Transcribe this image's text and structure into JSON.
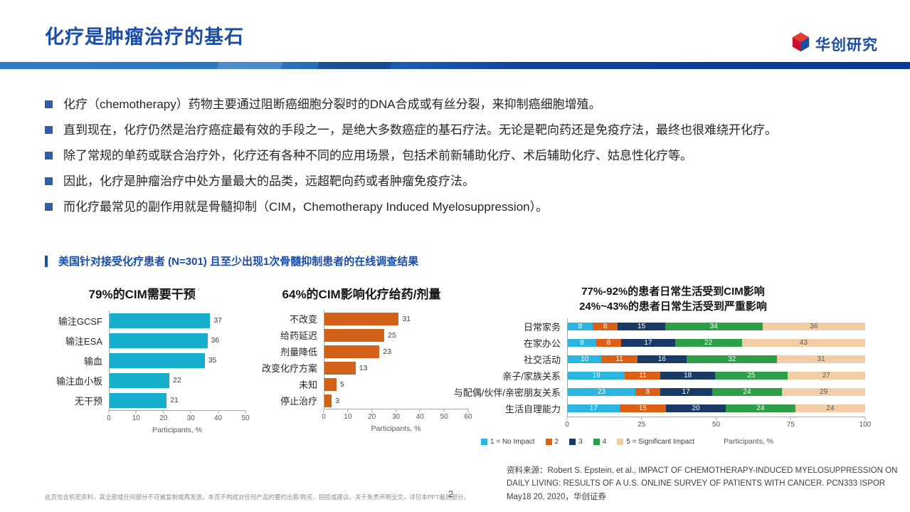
{
  "header": {
    "title": "化疗是肿瘤治疗的基石",
    "logo_text": "华创研究"
  },
  "bullets": [
    "化疗（chemotherapy）药物主要通过阻断癌细胞分裂时的DNA合成或有丝分裂，来抑制癌细胞增殖。",
    "直到现在，化疗仍然是治疗癌症最有效的手段之一，是绝大多数癌症的基石疗法。无论是靶向药还是免疫疗法，最终也很难绕开化疗。",
    "除了常规的单药或联合治疗外，化疗还有各种不同的应用场景，包括术前新辅助化疗、术后辅助化疗、姑息性化疗等。",
    "因此，化疗是肿瘤治疗中处方量最大的品类，远超靶向药或者肿瘤免疫疗法。",
    "而化疗最常见的副作用就是骨髓抑制（CIM，Chemotherapy Induced Myelosuppression）。"
  ],
  "survey_heading": "美国针对接受化疗患者 (N=301) 且至少出现1次骨髓抑制患者的在线调查结果",
  "chart_data": [
    {
      "type": "bar",
      "orientation": "horizontal",
      "title": "79%的CIM需要干预",
      "footnote": "'",
      "categories": [
        "输注GCSF",
        "输注ESA",
        "输血",
        "输注血小板",
        "无干预"
      ],
      "values": [
        37,
        36,
        35,
        22,
        21
      ],
      "xlabel": "Participants, %",
      "xlim": [
        0,
        50
      ],
      "xticks": [
        0,
        10,
        20,
        30,
        40,
        50
      ],
      "bar_color": "#17AECE"
    },
    {
      "type": "bar",
      "orientation": "horizontal",
      "title": "64%的CIM影响化疗给药/剂量",
      "categories": [
        "不改变",
        "给药延迟",
        "剂量降低",
        "改变化疗方案",
        "未知",
        "停止治疗"
      ],
      "values": [
        31,
        25,
        23,
        13,
        5,
        3
      ],
      "xlabel": "Participants, %",
      "xlim": [
        0,
        60
      ],
      "xticks": [
        0,
        10,
        20,
        30,
        40,
        50,
        60
      ],
      "bar_color": "#D2611A"
    },
    {
      "type": "bar",
      "orientation": "horizontal",
      "stacked": true,
      "title_line1": "77%-92%的患者日常生活受到CIM影响",
      "title_line2": "24%~43%的患者日常生活受到严重影响",
      "categories": [
        "日常家务",
        "在家办公",
        "社交活动",
        "亲子/家族关系",
        "与配偶/伙伴/亲密朋友关系",
        "生活自理能力"
      ],
      "series": [
        {
          "name": "1 = No Impact",
          "color": "#2BB6E0",
          "label_color": "#FFFFFF",
          "values": [
            8,
            9,
            10,
            19,
            23,
            17
          ]
        },
        {
          "name": "2",
          "color": "#DB5F15",
          "label_color": "#FFFFFF",
          "values": [
            8,
            8,
            11,
            11,
            8,
            15
          ]
        },
        {
          "name": "3",
          "color": "#1A3A66",
          "label_color": "#FFFFFF",
          "values": [
            15,
            17,
            16,
            18,
            17,
            20
          ]
        },
        {
          "name": "4",
          "color": "#2F9E49",
          "label_color": "#FFFFFF",
          "values": [
            34,
            22,
            32,
            25,
            24,
            24
          ]
        },
        {
          "name": "5 = Significant Impact",
          "color": "#F2CDA6",
          "label_color": "#595959",
          "values": [
            36,
            43,
            31,
            27,
            29,
            24
          ]
        }
      ],
      "xlabel": "Participants, %",
      "xlim": [
        0,
        100
      ],
      "xticks": [
        0,
        25,
        50,
        75,
        100
      ],
      "legend_position": "bottom"
    }
  ],
  "footer": {
    "source": "资料来源：Robert S. Epstein, et al., IMPACT OF CHEMOTHERAPY-INDUCED MYELOSUPPRESSION ON DAILY LIVING: RESULTS OF A U.S. ONLINE SURVEY OF PATIENTS WITH CANCER. PCN333 ISPOR May18 20, 2020，华创证券",
    "disclaimer": "此页包含机密资料，其全部或任何部分不可被复制或再发送。本页不构成对任何产品的要约出售/购买、招揽或建议。关于免责声明全文，详见本PPT最后部分。",
    "page_number": "2"
  },
  "colors": {
    "brand_blue": "#1A4DA6",
    "header_bar_left": "#2F7CC6",
    "header_bar_right": "#0C3A92",
    "logo_red": "#C8102E",
    "logo_blue": "#1B4DA3"
  }
}
